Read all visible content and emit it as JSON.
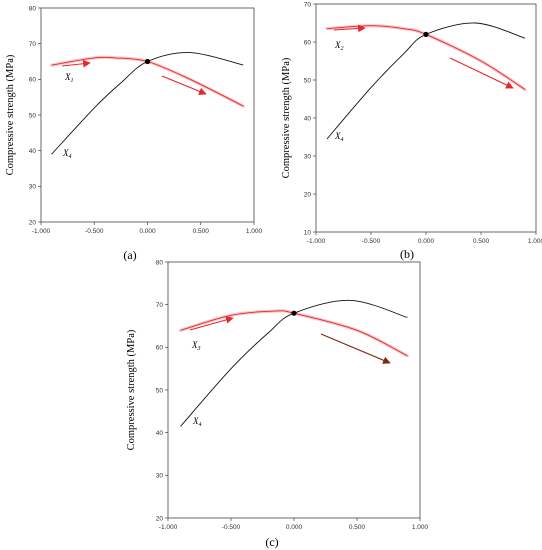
{
  "chart_data": [
    {
      "type": "line",
      "panel_label": "(a)",
      "ylabel": "Compressive strength (MPa)",
      "xlim": [
        -1.0,
        1.0
      ],
      "ylim": [
        20,
        80
      ],
      "x_ticks": [
        -1.0,
        -0.5,
        0.0,
        0.5,
        1.0
      ],
      "x_tick_labels": [
        "-1.000",
        "-0.500",
        "0.000",
        "0.500",
        "1.000"
      ],
      "y_ticks": [
        20,
        30,
        40,
        50,
        60,
        70,
        80
      ],
      "y_tick_labels": [
        "20",
        "30",
        "40",
        "50",
        "60",
        "70",
        "80"
      ],
      "series": [
        {
          "label": "X",
          "sub": "1",
          "color": "#e8262b",
          "x": [
            -0.9,
            -0.5,
            -0.3,
            0.0,
            0.4,
            0.9
          ],
          "y": [
            64,
            66,
            66,
            65,
            60,
            52.5
          ]
        },
        {
          "label": "X",
          "sub": "4",
          "color": "#111111",
          "x": [
            -0.9,
            -0.5,
            -0.25,
            0.0,
            0.4,
            0.9
          ],
          "y": [
            39,
            52,
            59,
            65,
            67.5,
            64
          ]
        }
      ],
      "center_point": {
        "x": 0.0,
        "y": 65
      }
    },
    {
      "type": "line",
      "panel_label": "(b)",
      "ylabel": "Compressive strength (MPa)",
      "xlim": [
        -1.0,
        1.0
      ],
      "ylim": [
        10,
        70
      ],
      "x_ticks": [
        -1.0,
        -0.5,
        0.0,
        0.5,
        1.0
      ],
      "x_tick_labels": [
        "-1.000",
        "-0.500",
        "0.000",
        "0.500",
        "1.000"
      ],
      "y_ticks": [
        10,
        20,
        30,
        40,
        50,
        60,
        70
      ],
      "y_tick_labels": [
        "10",
        "20",
        "30",
        "40",
        "50",
        "60",
        "70"
      ],
      "series": [
        {
          "label": "X",
          "sub": "2",
          "color": "#e8262b",
          "x": [
            -0.9,
            -0.5,
            -0.2,
            0.0,
            0.5,
            0.9
          ],
          "y": [
            63.5,
            64.3,
            63.5,
            62,
            55,
            47.5
          ]
        },
        {
          "label": "X",
          "sub": "4",
          "color": "#111111",
          "x": [
            -0.9,
            -0.5,
            -0.2,
            0.0,
            0.45,
            0.9
          ],
          "y": [
            34.5,
            48,
            57,
            62,
            65,
            61
          ]
        }
      ],
      "center_point": {
        "x": 0.0,
        "y": 62
      }
    },
    {
      "type": "line",
      "panel_label": "(c)",
      "ylabel": "Compressive strength (MPa)",
      "xlim": [
        -1.0,
        1.0
      ],
      "ylim": [
        20,
        80
      ],
      "x_ticks": [
        -1.0,
        -0.5,
        0.0,
        0.5,
        1.0
      ],
      "x_tick_labels": [
        "-1.000",
        "-0.500",
        "0.000",
        "0.500",
        "1.000"
      ],
      "y_ticks": [
        20,
        30,
        40,
        50,
        60,
        70,
        80
      ],
      "y_tick_labels": [
        "20",
        "30",
        "40",
        "50",
        "60",
        "70",
        "80"
      ],
      "series": [
        {
          "label": "X",
          "sub": "3",
          "color": "#e8262b",
          "x": [
            -0.9,
            -0.5,
            -0.15,
            0.0,
            0.5,
            0.9
          ],
          "y": [
            64,
            67.5,
            68.5,
            68,
            64,
            58
          ]
        },
        {
          "label": "X",
          "sub": "4",
          "color": "#111111",
          "x": [
            -0.9,
            -0.5,
            -0.2,
            0.0,
            0.45,
            0.9
          ],
          "y": [
            41.5,
            55,
            63.5,
            68,
            71,
            67
          ]
        }
      ],
      "center_point": {
        "x": 0.0,
        "y": 68
      }
    }
  ]
}
